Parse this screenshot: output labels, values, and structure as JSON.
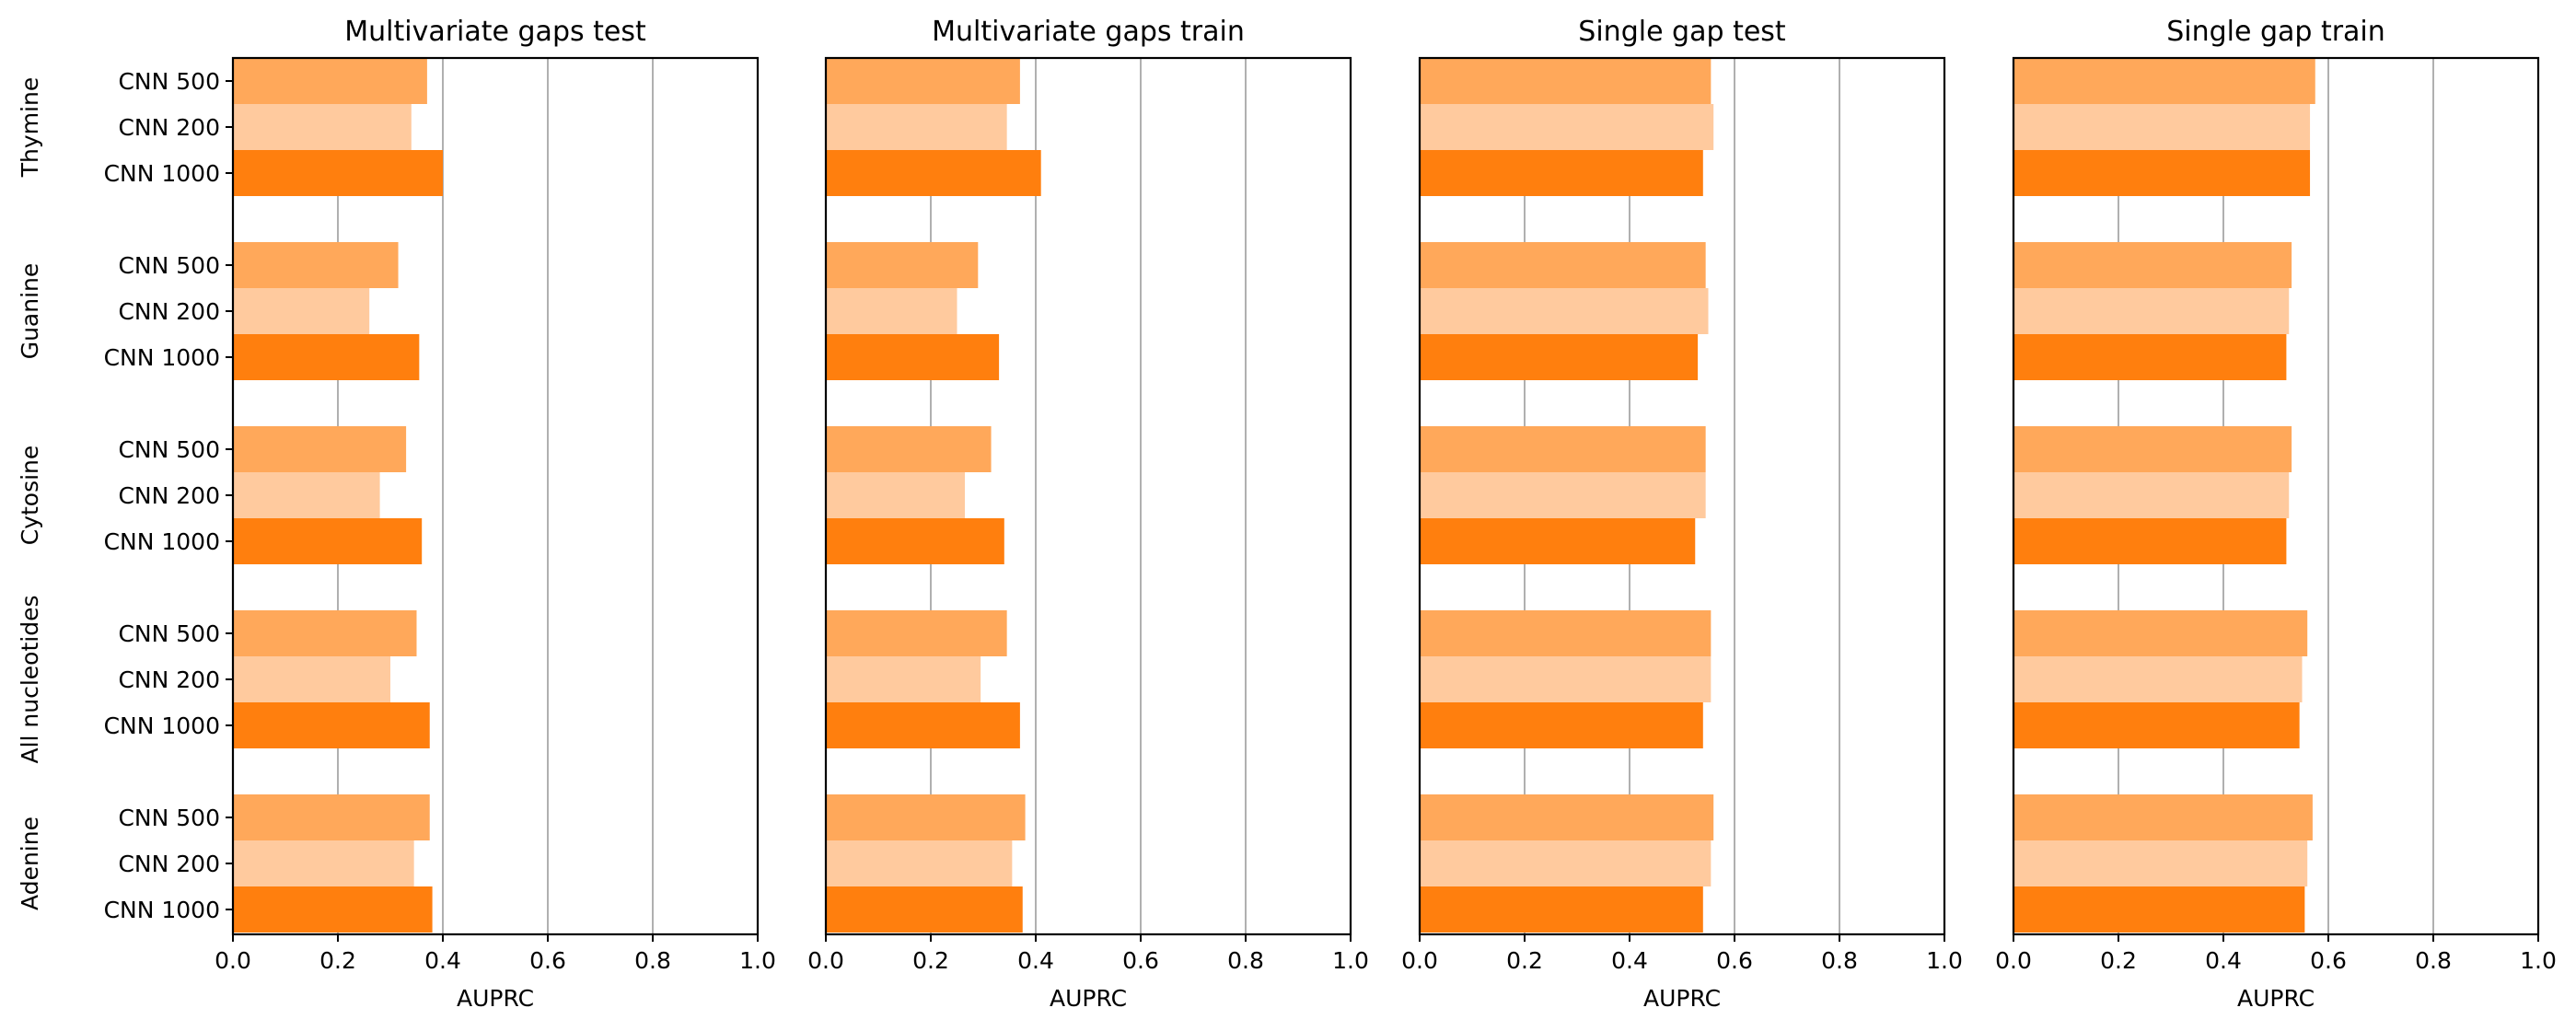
{
  "chart_data": {
    "type": "bar",
    "orientation": "horizontal",
    "groups": [
      "Thymine",
      "Guanine",
      "Cytosine",
      "All nucleotides",
      "Adenine"
    ],
    "bar_labels": [
      "CNN 500",
      "CNN 200",
      "CNN 1000"
    ],
    "series_colors": {
      "CNN 500": "#FFA85A",
      "CNN 200": "#FFCA9E",
      "CNN 1000": "#FF7F0E"
    },
    "xlim": [
      0,
      1
    ],
    "xticks": [
      "0.0",
      "0.2",
      "0.4",
      "0.6",
      "0.8",
      "1.0"
    ],
    "grid": "vertical",
    "legend": "none",
    "panels": [
      {
        "title": "Multivariate gaps test",
        "xlabel": "AUPRC",
        "values": {
          "Thymine": [
            0.37,
            0.34,
            0.4
          ],
          "Guanine": [
            0.315,
            0.26,
            0.355
          ],
          "Cytosine": [
            0.33,
            0.28,
            0.36
          ],
          "All nucleotides": [
            0.35,
            0.3,
            0.375
          ],
          "Adenine": [
            0.375,
            0.345,
            0.38
          ]
        }
      },
      {
        "title": "Multivariate gaps train",
        "xlabel": "AUPRC",
        "values": {
          "Thymine": [
            0.37,
            0.345,
            0.41
          ],
          "Guanine": [
            0.29,
            0.25,
            0.33
          ],
          "Cytosine": [
            0.315,
            0.265,
            0.34
          ],
          "All nucleotides": [
            0.345,
            0.295,
            0.37
          ],
          "Adenine": [
            0.38,
            0.355,
            0.375
          ]
        }
      },
      {
        "title": "Single gap test",
        "xlabel": "AUPRC",
        "values": {
          "Thymine": [
            0.555,
            0.56,
            0.54
          ],
          "Guanine": [
            0.545,
            0.55,
            0.53
          ],
          "Cytosine": [
            0.545,
            0.545,
            0.525
          ],
          "All nucleotides": [
            0.555,
            0.555,
            0.54
          ],
          "Adenine": [
            0.56,
            0.555,
            0.54
          ]
        }
      },
      {
        "title": "Single gap train",
        "xlabel": "AUPRC",
        "values": {
          "Thymine": [
            0.575,
            0.565,
            0.565
          ],
          "Guanine": [
            0.53,
            0.525,
            0.52
          ],
          "Cytosine": [
            0.53,
            0.525,
            0.52
          ],
          "All nucleotides": [
            0.56,
            0.55,
            0.545
          ],
          "Adenine": [
            0.57,
            0.56,
            0.555
          ]
        }
      }
    ]
  }
}
